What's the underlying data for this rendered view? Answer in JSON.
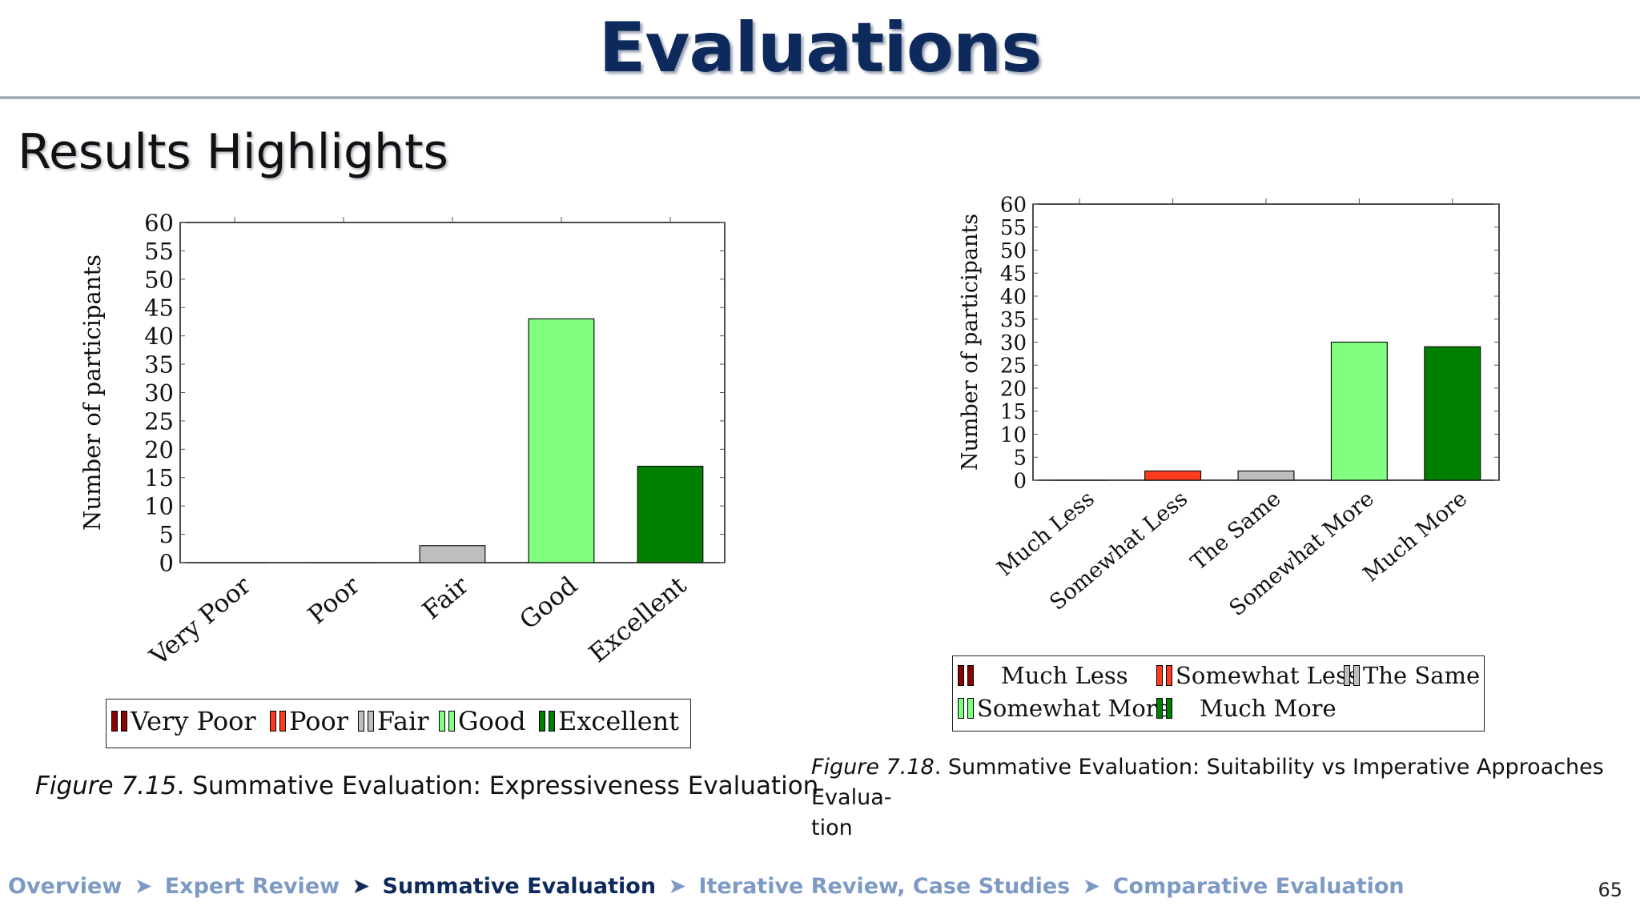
{
  "header": {
    "title": "Evaluations",
    "subtitle": "Results Highlights"
  },
  "colors": {
    "very_poor": "#8b0000",
    "poor": "#ff3b1f",
    "fair": "#bebebe",
    "good": "#80ff80",
    "excellent": "#008000",
    "title": "#0e2a5c",
    "footer": "#7d9ac6"
  },
  "chart_data": [
    {
      "type": "bar",
      "categories": [
        "Very Poor",
        "Poor",
        "Fair",
        "Good",
        "Excellent"
      ],
      "values": [
        0,
        0,
        3,
        43,
        17
      ],
      "ylabel": "Number of participants",
      "ylim": [
        0,
        60
      ],
      "yticks": [
        0,
        5,
        10,
        15,
        20,
        25,
        30,
        35,
        40,
        45,
        50,
        55,
        60
      ],
      "legend": [
        "Very Poor",
        "Poor",
        "Fair",
        "Good",
        "Excellent"
      ],
      "legend_placement": "bottom",
      "bar_colors": [
        "#8b0000",
        "#ff3b1f",
        "#bebebe",
        "#80ff80",
        "#008000"
      ],
      "caption_label": "Figure 7.15",
      "caption_text": ". Summative Evaluation: Expressiveness Evaluation"
    },
    {
      "type": "bar",
      "categories": [
        "Much Less",
        "Somewhat Less",
        "The Same",
        "Somewhat More",
        "Much More"
      ],
      "values": [
        0,
        2,
        2,
        30,
        29
      ],
      "ylabel": "Number of participants",
      "ylim": [
        0,
        60
      ],
      "yticks": [
        0,
        5,
        10,
        15,
        20,
        25,
        30,
        35,
        40,
        45,
        50,
        55,
        60
      ],
      "legend": [
        "Much Less",
        "Somewhat Less",
        "The Same",
        "Somewhat More",
        "Much More"
      ],
      "legend_placement": "bottom",
      "bar_colors": [
        "#8b0000",
        "#ff3b1f",
        "#bebebe",
        "#80ff80",
        "#008000"
      ],
      "caption_label": "Figure 7.18",
      "caption_text": ". Summative Evaluation: Suitability vs Imperative Approaches Evalua-",
      "caption_text2": "tion"
    }
  ],
  "footer": {
    "crumbs": [
      "Overview",
      "Expert Review",
      "Summative Evaluation",
      "Iterative Review, Case Studies",
      "Comparative Evaluation"
    ],
    "active": 2,
    "separator": "➤",
    "page": "65"
  }
}
